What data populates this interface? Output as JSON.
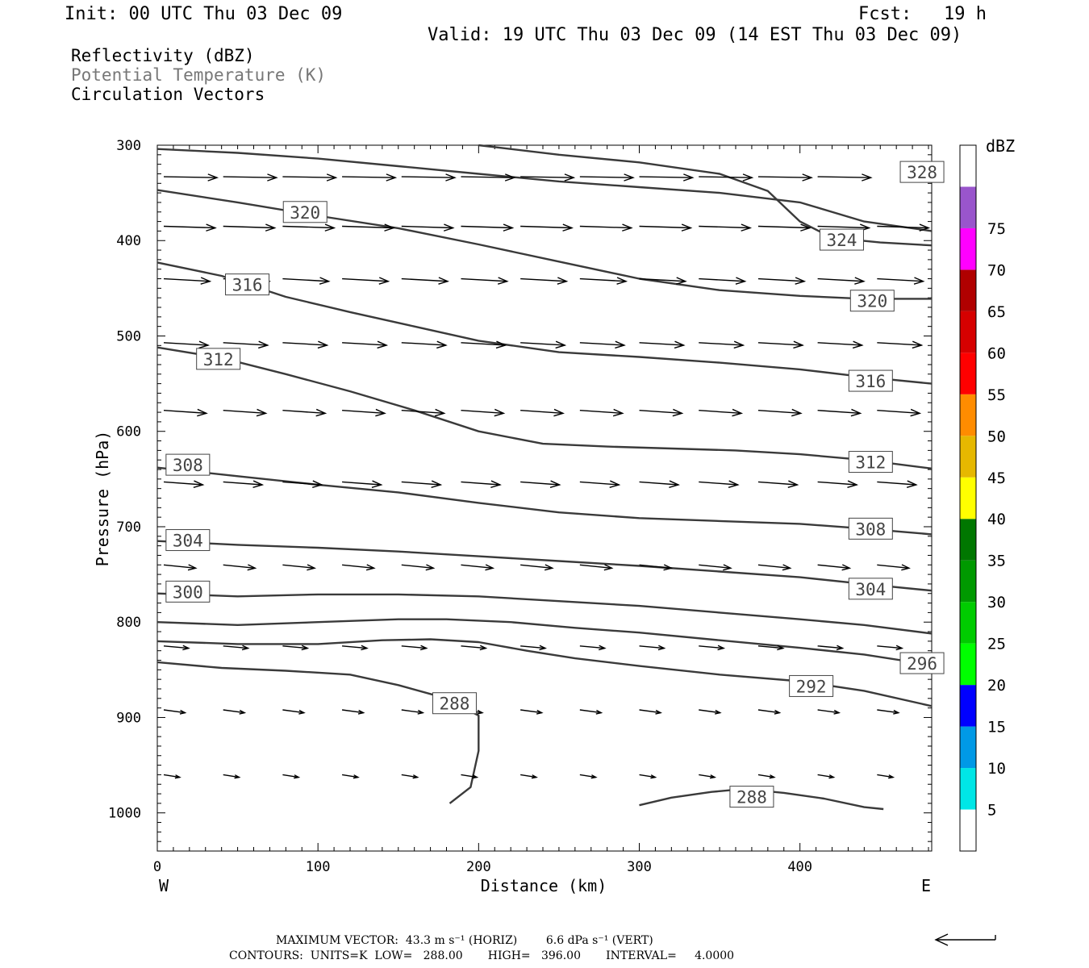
{
  "header": {
    "init": "Init: 00 UTC Thu 03 Dec 09",
    "fcst": "Fcst:   19 h",
    "valid": "Valid: 19 UTC Thu 03 Dec 09 (14 EST Thu 03 Dec 09)"
  },
  "fields": {
    "reflectivity": "Reflectivity (dBZ)",
    "theta": "Potential Temperature (K)",
    "vectors": "Circulation Vectors"
  },
  "colors": {
    "theta_label": "#777777",
    "contour": "#3a3a3a"
  },
  "footer": {
    "line1": "MAXIMUM VECTOR:  43.3 m s⁻¹ (HORIZ)        6.6 dPa s⁻¹ (VERT)",
    "line2": "CONTOURS:  UNITS=K  LOW=   288.00       HIGH=   396.00       INTERVAL=     4.0000"
  },
  "chart_data": {
    "type": "cross-section",
    "xlabel": "Distance (km)",
    "ylabel": "Pressure (hPa)",
    "xlim": [
      0,
      482
    ],
    "ylim": [
      1040,
      300
    ],
    "x_ticks": [
      0,
      100,
      200,
      300,
      400
    ],
    "y_ticks": [
      300,
      400,
      500,
      600,
      700,
      800,
      900,
      1000
    ],
    "x_end_labels": {
      "left": "W",
      "right": "E"
    },
    "colorbar": {
      "unit": "dBZ",
      "ticks": [
        5,
        10,
        15,
        20,
        25,
        30,
        35,
        40,
        45,
        50,
        55,
        60,
        65,
        70,
        75
      ],
      "colors": [
        "#ffffff",
        "#00e6e6",
        "#0099e6",
        "#0000ff",
        "#00ff00",
        "#00cc00",
        "#009900",
        "#007700",
        "#ffff00",
        "#e6b800",
        "#ff8c00",
        "#ff0000",
        "#d60000",
        "#b00000",
        "#ff00ff",
        "#9955cc",
        "#ffffff"
      ]
    },
    "contours": [
      {
        "value": 288,
        "points": [
          [
            0,
            842
          ],
          [
            40,
            848
          ],
          [
            80,
            851
          ],
          [
            120,
            855
          ],
          [
            150,
            866
          ],
          [
            180,
            880
          ],
          [
            200,
            898
          ],
          [
            200,
            935
          ],
          [
            195,
            973
          ],
          [
            182,
            990
          ]
        ]
      },
      {
        "value": 288,
        "points": [
          [
            300,
            992
          ],
          [
            320,
            984
          ],
          [
            345,
            978
          ],
          [
            365,
            975
          ],
          [
            390,
            979
          ],
          [
            415,
            985
          ],
          [
            440,
            994
          ],
          [
            452,
            996
          ]
        ]
      },
      {
        "value": 292,
        "points": [
          [
            0,
            820
          ],
          [
            50,
            823
          ],
          [
            100,
            823
          ],
          [
            140,
            819
          ],
          [
            170,
            818
          ],
          [
            200,
            821
          ],
          [
            230,
            830
          ],
          [
            260,
            838
          ],
          [
            300,
            846
          ],
          [
            350,
            855
          ],
          [
            400,
            862
          ],
          [
            440,
            872
          ],
          [
            482,
            888
          ]
        ]
      },
      {
        "value": 296,
        "points": [
          [
            0,
            800
          ],
          [
            50,
            803
          ],
          [
            100,
            800
          ],
          [
            150,
            797
          ],
          [
            180,
            797
          ],
          [
            220,
            800
          ],
          [
            260,
            806
          ],
          [
            300,
            811
          ],
          [
            350,
            819
          ],
          [
            400,
            827
          ],
          [
            440,
            834
          ],
          [
            482,
            845
          ]
        ]
      },
      {
        "value": 300,
        "points": [
          [
            0,
            770
          ],
          [
            50,
            773
          ],
          [
            100,
            771
          ],
          [
            150,
            771
          ],
          [
            200,
            773
          ],
          [
            250,
            778
          ],
          [
            300,
            783
          ],
          [
            350,
            790
          ],
          [
            400,
            797
          ],
          [
            440,
            803
          ],
          [
            482,
            812
          ]
        ]
      },
      {
        "value": 304,
        "points": [
          [
            0,
            715
          ],
          [
            50,
            719
          ],
          [
            100,
            722
          ],
          [
            150,
            726
          ],
          [
            200,
            731
          ],
          [
            250,
            736
          ],
          [
            300,
            741
          ],
          [
            350,
            747
          ],
          [
            400,
            753
          ],
          [
            440,
            760
          ],
          [
            482,
            767
          ]
        ]
      },
      {
        "value": 308,
        "points": [
          [
            0,
            638
          ],
          [
            50,
            647
          ],
          [
            100,
            656
          ],
          [
            150,
            664
          ],
          [
            200,
            675
          ],
          [
            250,
            685
          ],
          [
            300,
            691
          ],
          [
            350,
            694
          ],
          [
            400,
            697
          ],
          [
            440,
            702
          ],
          [
            482,
            708
          ]
        ]
      },
      {
        "value": 312,
        "points": [
          [
            0,
            512
          ],
          [
            40,
            523
          ],
          [
            80,
            540
          ],
          [
            120,
            558
          ],
          [
            160,
            578
          ],
          [
            200,
            600
          ],
          [
            240,
            613
          ],
          [
            280,
            616
          ],
          [
            320,
            618
          ],
          [
            360,
            620
          ],
          [
            400,
            624
          ],
          [
            440,
            630
          ],
          [
            482,
            639
          ]
        ]
      },
      {
        "value": 316,
        "points": [
          [
            0,
            423
          ],
          [
            40,
            437
          ],
          [
            80,
            459
          ],
          [
            120,
            475
          ],
          [
            160,
            490
          ],
          [
            200,
            505
          ],
          [
            250,
            517
          ],
          [
            300,
            522
          ],
          [
            350,
            528
          ],
          [
            400,
            535
          ],
          [
            440,
            543
          ],
          [
            482,
            550
          ]
        ]
      },
      {
        "value": 320,
        "points": [
          [
            0,
            347
          ],
          [
            50,
            360
          ],
          [
            100,
            374
          ],
          [
            150,
            387
          ],
          [
            200,
            404
          ],
          [
            250,
            422
          ],
          [
            300,
            440
          ],
          [
            350,
            452
          ],
          [
            400,
            458
          ],
          [
            440,
            461
          ],
          [
            482,
            461
          ]
        ]
      },
      {
        "value": 324,
        "points": [
          [
            200,
            300
          ],
          [
            250,
            310
          ],
          [
            300,
            318
          ],
          [
            350,
            330
          ],
          [
            380,
            348
          ],
          [
            400,
            380
          ],
          [
            420,
            397
          ],
          [
            450,
            402
          ],
          [
            482,
            405
          ]
        ]
      },
      {
        "value": 328,
        "points": [
          [
            0,
            304
          ],
          [
            50,
            308
          ],
          [
            100,
            314
          ],
          [
            150,
            322
          ],
          [
            200,
            330
          ],
          [
            250,
            338
          ],
          [
            300,
            344
          ],
          [
            350,
            350
          ],
          [
            400,
            360
          ],
          [
            440,
            380
          ],
          [
            482,
            390
          ]
        ]
      }
    ],
    "contour_labels": [
      {
        "text": "328",
        "x": 476,
        "p": 328
      },
      {
        "text": "320",
        "x": 92,
        "p": 370
      },
      {
        "text": "324",
        "x": 426,
        "p": 399
      },
      {
        "text": "316",
        "x": 56,
        "p": 446
      },
      {
        "text": "320",
        "x": 445,
        "p": 463
      },
      {
        "text": "312",
        "x": 38,
        "p": 524
      },
      {
        "text": "316",
        "x": 444,
        "p": 547
      },
      {
        "text": "308",
        "x": 19,
        "p": 635
      },
      {
        "text": "312",
        "x": 444,
        "p": 632
      },
      {
        "text": "304",
        "x": 19,
        "p": 714
      },
      {
        "text": "308",
        "x": 444,
        "p": 702
      },
      {
        "text": "300",
        "x": 19,
        "p": 768
      },
      {
        "text": "304",
        "x": 444,
        "p": 765
      },
      {
        "text": "296",
        "x": 476,
        "p": 843
      },
      {
        "text": "292",
        "x": 407,
        "p": 867
      },
      {
        "text": "288",
        "x": 185,
        "p": 885
      },
      {
        "text": "288",
        "x": 370,
        "p": 983
      }
    ],
    "vector_rows": [
      {
        "p": 333,
        "u": 30,
        "w": -0.3
      },
      {
        "p": 385,
        "u": 29,
        "w": -0.5
      },
      {
        "p": 440,
        "u": 26,
        "w": -0.8
      },
      {
        "p": 507,
        "u": 25,
        "w": -0.8
      },
      {
        "p": 578,
        "u": 24,
        "w": -0.9
      },
      {
        "p": 653,
        "u": 22,
        "w": -0.9
      },
      {
        "p": 740,
        "u": 18,
        "w": -1.0
      },
      {
        "p": 825,
        "u": 14,
        "w": -0.7
      },
      {
        "p": 892,
        "u": 12,
        "w": -0.9
      },
      {
        "p": 960,
        "u": 9,
        "w": -0.8
      }
    ],
    "vector_x": [
      0,
      37,
      74,
      111,
      148,
      185,
      222,
      259,
      296,
      333,
      370,
      407,
      444
    ]
  }
}
